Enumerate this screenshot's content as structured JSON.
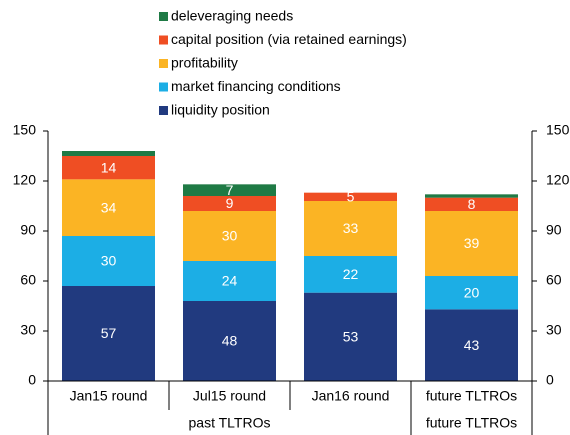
{
  "chart_data": {
    "type": "stacked-bar",
    "categories": [
      "Jan15 round",
      "Jul15 round",
      "Jan16 round",
      "future TLTROs"
    ],
    "groups": [
      {
        "name": "past TLTROs",
        "count": 3
      },
      {
        "name": "future TLTROs",
        "count": 1
      }
    ],
    "series": [
      {
        "name": "liquidity position",
        "color": "#213a7f",
        "values": [
          57,
          48,
          53,
          43
        ]
      },
      {
        "name": "market financing conditions",
        "color": "#1caee5",
        "values": [
          30,
          24,
          22,
          20
        ]
      },
      {
        "name": "profitability",
        "color": "#fbb424",
        "values": [
          34,
          30,
          33,
          39
        ]
      },
      {
        "name": "capital position (via retained earnings)",
        "color": "#ef4e23",
        "values": [
          14,
          9,
          5,
          8
        ]
      },
      {
        "name": "deleveraging needs",
        "color": "#1f7a45",
        "values": [
          3,
          7,
          0,
          2
        ],
        "value_labels": [
          null,
          "7",
          null,
          null
        ]
      }
    ],
    "ylim": [
      0,
      150
    ],
    "yticks": [
      0,
      30,
      60,
      90,
      120,
      150
    ],
    "y2lim": [
      0,
      150
    ],
    "y2ticks": [
      0,
      30,
      60,
      90,
      120,
      150
    ]
  }
}
